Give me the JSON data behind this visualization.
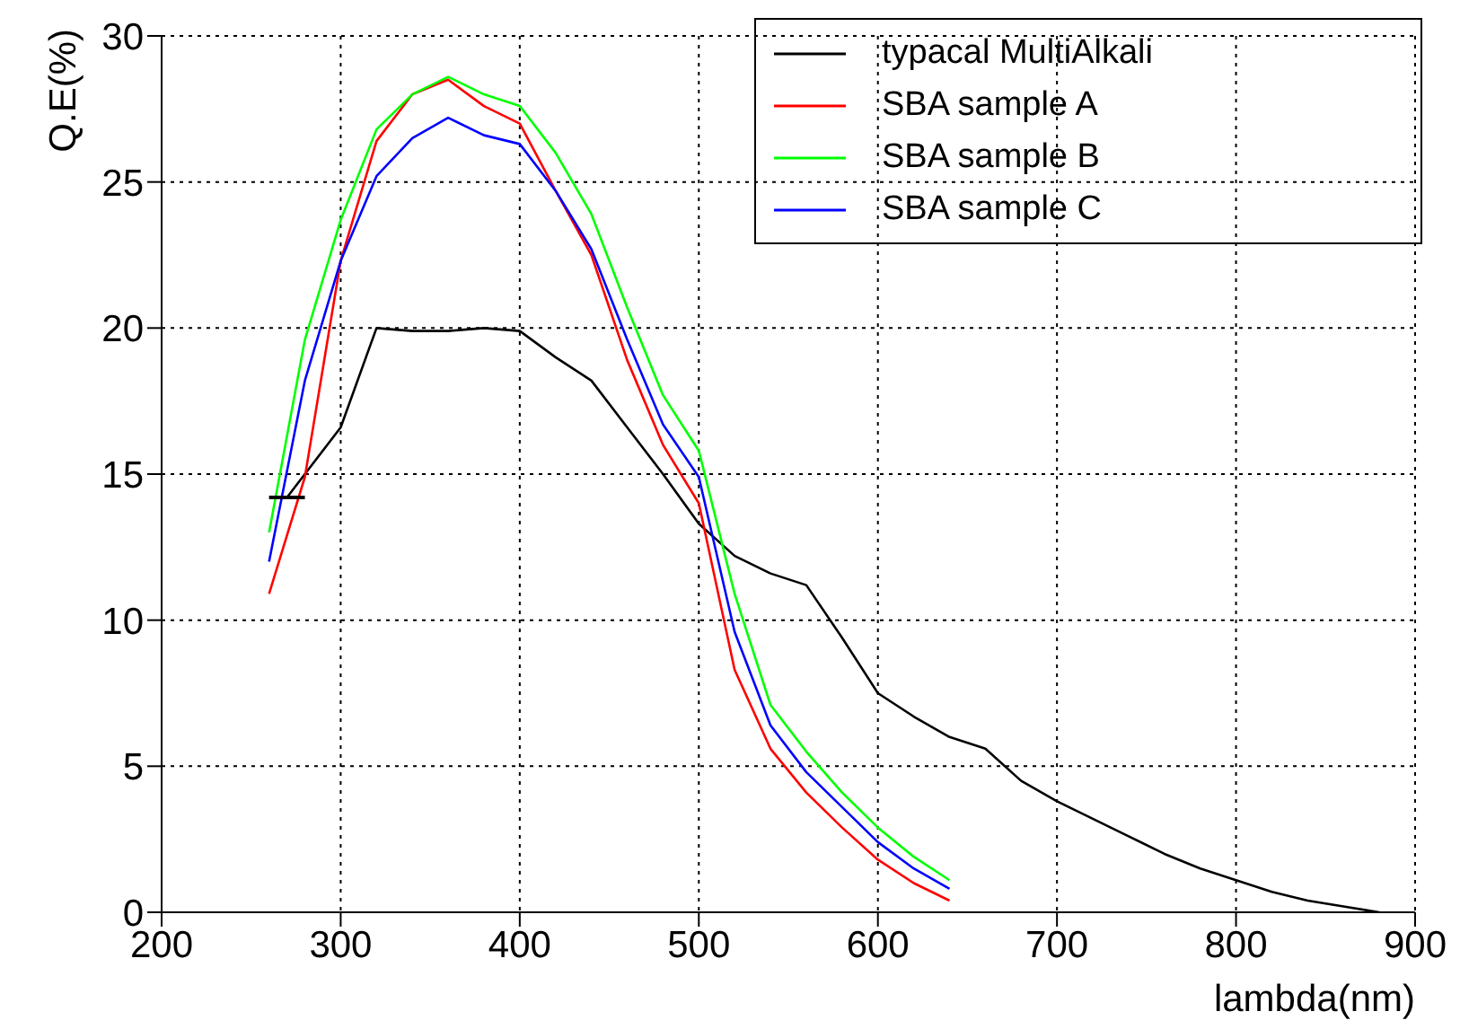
{
  "chart_data": {
    "type": "line",
    "xlabel": "lambda(nm)",
    "ylabel": "Q.E(%)",
    "xlim": [
      200,
      900
    ],
    "xticks": [
      200,
      300,
      400,
      500,
      600,
      700,
      800,
      900
    ],
    "ylim": [
      0,
      30
    ],
    "yticks": [
      0,
      5,
      10,
      15,
      20,
      25,
      30
    ],
    "grid": true,
    "legend": "top right",
    "marker": "none",
    "line_style": "solid",
    "series": [
      {
        "name": "typacal MultiAlkali",
        "color": "#000000",
        "x": [
          270,
          300,
          320,
          340,
          360,
          380,
          400,
          420,
          440,
          460,
          480,
          500,
          520,
          540,
          560,
          580,
          600,
          620,
          640,
          660,
          680,
          700,
          720,
          740,
          760,
          780,
          800,
          820,
          840,
          860,
          880
        ],
        "values": [
          14.2,
          16.6,
          20.0,
          19.9,
          19.9,
          20.0,
          19.9,
          19.0,
          18.2,
          16.6,
          15.0,
          13.3,
          12.2,
          11.6,
          11.2,
          9.4,
          7.5,
          6.7,
          6.0,
          5.6,
          4.5,
          3.8,
          3.2,
          2.6,
          2.0,
          1.5,
          1.1,
          0.7,
          0.4,
          0.2,
          0.0
        ],
        "xerrors": [
          10,
          null,
          null,
          null,
          null,
          null,
          null,
          null,
          null,
          null,
          null,
          null,
          null,
          null,
          null,
          null,
          null,
          null,
          null,
          null,
          null,
          null,
          null,
          null,
          null,
          null,
          null,
          null,
          null,
          null,
          null
        ]
      },
      {
        "name": "SBA sample A",
        "color": "#ff0000",
        "x": [
          260,
          280,
          300,
          320,
          340,
          360,
          380,
          400,
          420,
          440,
          460,
          480,
          500,
          520,
          540,
          560,
          580,
          600,
          620,
          640
        ],
        "values": [
          10.9,
          14.9,
          22.3,
          26.4,
          28.0,
          28.5,
          27.6,
          27.0,
          24.7,
          22.5,
          18.9,
          16.0,
          14.0,
          8.3,
          5.6,
          4.1,
          2.9,
          1.8,
          1.0,
          0.4
        ]
      },
      {
        "name": "SBA sample B",
        "color": "#00ff00",
        "x": [
          260,
          280,
          300,
          320,
          340,
          360,
          380,
          400,
          420,
          440,
          460,
          480,
          500,
          520,
          540,
          560,
          580,
          600,
          620,
          640
        ],
        "values": [
          13.0,
          19.6,
          23.7,
          26.8,
          28.0,
          28.6,
          28.0,
          27.6,
          26.0,
          23.9,
          20.7,
          17.7,
          15.8,
          10.9,
          7.1,
          5.5,
          4.1,
          2.9,
          1.9,
          1.1
        ]
      },
      {
        "name": "SBA sample C",
        "color": "#0000ff",
        "x": [
          260,
          280,
          300,
          320,
          340,
          360,
          380,
          400,
          420,
          440,
          460,
          480,
          500,
          520,
          540,
          560,
          580,
          600,
          620,
          640
        ],
        "values": [
          12.0,
          18.2,
          22.3,
          25.2,
          26.5,
          27.2,
          26.6,
          26.3,
          24.7,
          22.7,
          19.6,
          16.7,
          14.9,
          9.6,
          6.4,
          4.8,
          3.6,
          2.4,
          1.5,
          0.8
        ]
      }
    ]
  }
}
